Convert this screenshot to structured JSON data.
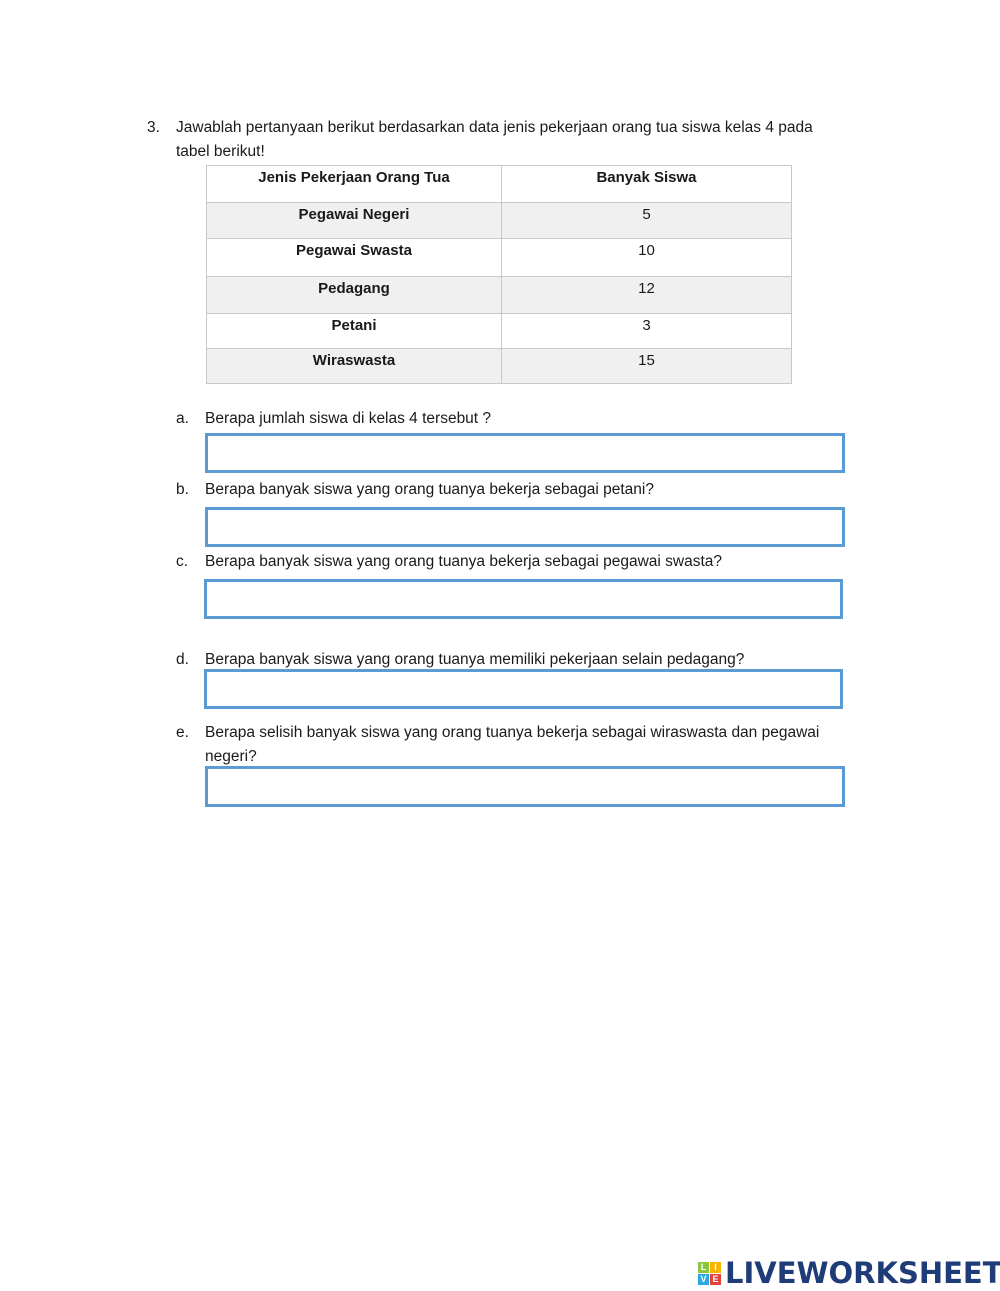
{
  "question": {
    "number": "3.",
    "line1": "Jawablah pertanyaan berikut berdasarkan data jenis pekerjaan orang tua siswa kelas 4 pada",
    "line2": "tabel berikut!"
  },
  "table": {
    "headers": [
      "Jenis Pekerjaan Orang Tua",
      "Banyak Siswa"
    ],
    "rows": [
      [
        "Pegawai Negeri",
        "5"
      ],
      [
        "Pegawai Swasta",
        "10"
      ],
      [
        "Pedagang",
        "12"
      ],
      [
        "Petani",
        "3"
      ],
      [
        "Wiraswasta",
        "15"
      ]
    ]
  },
  "subquestions": [
    {
      "label": "a.",
      "text": "Berapa jumlah siswa di kelas 4 tersebut ?",
      "answer": ""
    },
    {
      "label": "b.",
      "text": "Berapa banyak siswa yang orang tuanya bekerja sebagai petani?",
      "answer": ""
    },
    {
      "label": "c.",
      "text": "Berapa banyak siswa yang orang tuanya bekerja sebagai pegawai swasta?",
      "answer": ""
    },
    {
      "label": "d.",
      "text": "Berapa banyak siswa yang orang tuanya memiliki pekerjaan selain pedagang?",
      "answer": ""
    },
    {
      "label": "e.",
      "text": "Berapa selisih banyak siswa yang orang tuanya bekerja sebagai wiraswasta dan pegawai",
      "text2": "negeri?",
      "answer": ""
    }
  ],
  "logo": {
    "text": "LIVEWORKSHEETS",
    "letters": [
      "L",
      "I",
      "V",
      "E"
    ],
    "color": "#1d3c78"
  },
  "colors": {
    "input_border": "#5b9bd5"
  }
}
